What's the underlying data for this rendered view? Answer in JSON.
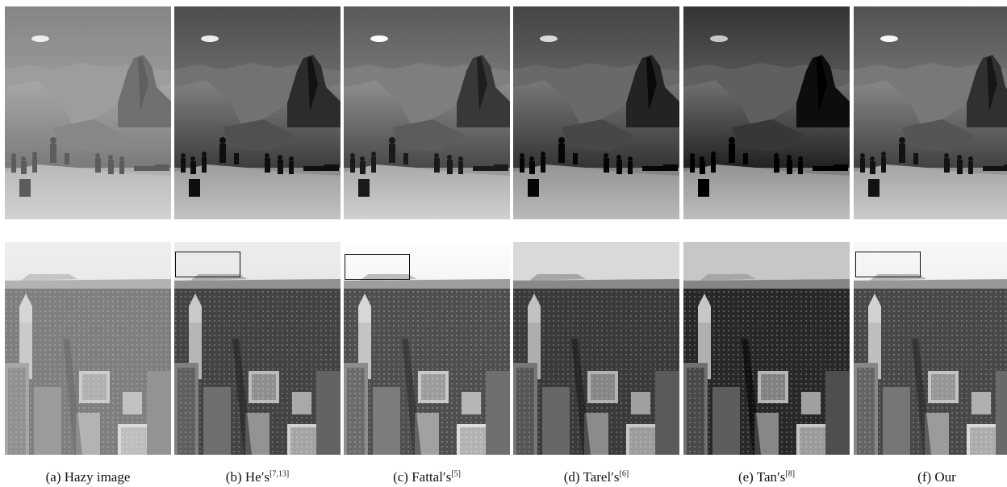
{
  "captions": [
    {
      "prefix": "(a) Hazy image",
      "sup": ""
    },
    {
      "prefix": "(b) He′s",
      "sup": "[7,13]"
    },
    {
      "prefix": "(c) Fattal′s",
      "sup": "[5]"
    },
    {
      "prefix": "(d) Tarel′s",
      "sup": "[6]"
    },
    {
      "prefix": "(e) Tan′s",
      "sup": "[8]"
    },
    {
      "prefix": "(f) Our",
      "sup": ""
    }
  ],
  "colors": {
    "sky_top": "#5a5a5a",
    "sky_bottom": "#a8a8a8",
    "rock": "#6e6e6e",
    "foreground": "#b9b9b9",
    "city_sky": "#e8e8e8",
    "city_building": "#3c3c3c"
  }
}
